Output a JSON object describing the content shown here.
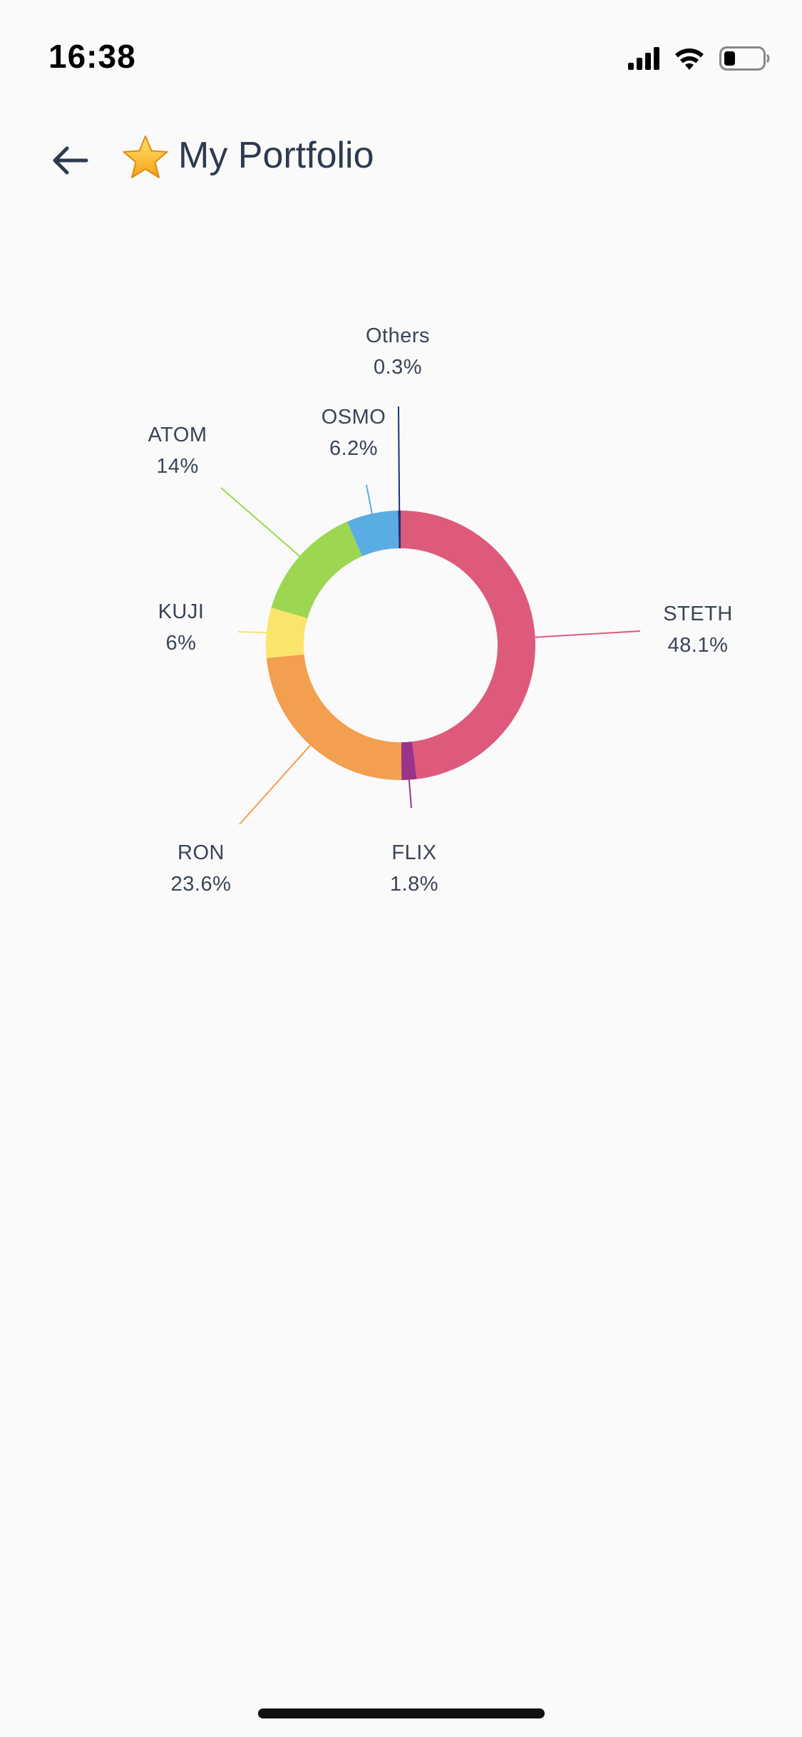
{
  "status_bar": {
    "time": "16:38"
  },
  "header": {
    "back_icon": "arrow-left-icon",
    "star_icon": "star-emoji-icon",
    "title": "My Portfolio"
  },
  "colors": {
    "background": "#fafafa",
    "title": "#2d3a4f",
    "label": "#3a4456"
  },
  "chart_data": {
    "type": "pie",
    "donut": true,
    "title": "",
    "slices": [
      {
        "label": "STETH",
        "percent_label": "48.1%",
        "value": 48.1,
        "color": "#de5a7b"
      },
      {
        "label": "FLIX",
        "percent_label": "1.8%",
        "value": 1.8,
        "color": "#9b3389"
      },
      {
        "label": "RON",
        "percent_label": "23.6%",
        "value": 23.6,
        "color": "#f29f4f"
      },
      {
        "label": "KUJI",
        "percent_label": "6%",
        "value": 6.0,
        "color": "#fbe46b"
      },
      {
        "label": "ATOM",
        "percent_label": "14%",
        "value": 14.0,
        "color": "#9dd650"
      },
      {
        "label": "OSMO",
        "percent_label": "6.2%",
        "value": 6.2,
        "color": "#5aade3"
      },
      {
        "label": "Others",
        "percent_label": "0.3%",
        "value": 0.3,
        "color": "#1f2f7a"
      }
    ]
  }
}
